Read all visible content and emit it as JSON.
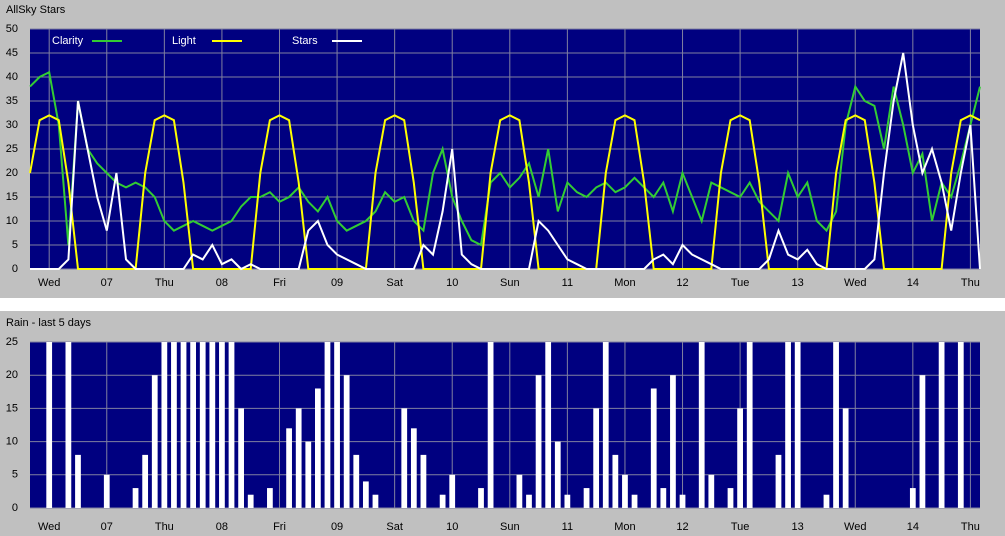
{
  "chart_data": [
    {
      "type": "line",
      "title": "AllSky Stars",
      "categories": [
        null,
        null,
        "Wed",
        null,
        null,
        null,
        null,
        null,
        "07",
        null,
        null,
        null,
        null,
        null,
        "Thu",
        null,
        null,
        null,
        null,
        null,
        "08",
        null,
        null,
        null,
        null,
        null,
        "Fri",
        null,
        null,
        null,
        null,
        null,
        "09",
        null,
        null,
        null,
        null,
        null,
        "Sat",
        null,
        null,
        null,
        null,
        null,
        "10",
        null,
        null,
        null,
        null,
        null,
        "Sun",
        null,
        null,
        null,
        null,
        null,
        "11",
        null,
        null,
        null,
        null,
        null,
        "Mon",
        null,
        null,
        null,
        null,
        null,
        "12",
        null,
        null,
        null,
        null,
        null,
        "Tue",
        null,
        null,
        null,
        null,
        null,
        "13",
        null,
        null,
        null,
        null,
        null,
        "Wed",
        null,
        null,
        null,
        null,
        null,
        "14",
        null,
        null,
        null,
        null,
        null,
        "Thu",
        null
      ],
      "series": [
        {
          "name": "Clarity",
          "color": "#33cc33",
          "values": [
            38,
            40,
            41,
            30,
            5,
            35,
            25,
            22,
            20,
            18,
            17,
            18,
            17,
            15,
            10,
            8,
            9,
            10,
            9,
            8,
            9,
            10,
            13,
            15,
            15,
            16,
            14,
            15,
            17,
            14,
            12,
            15,
            10,
            8,
            9,
            10,
            12,
            16,
            14,
            15,
            10,
            8,
            20,
            25,
            15,
            10,
            6,
            5,
            18,
            20,
            17,
            19,
            22,
            15,
            25,
            12,
            18,
            16,
            15,
            17,
            18,
            16,
            17,
            19,
            17,
            15,
            18,
            12,
            20,
            15,
            10,
            18,
            17,
            16,
            15,
            18,
            14,
            12,
            10,
            20,
            15,
            18,
            10,
            8,
            12,
            30,
            38,
            35,
            34,
            25,
            38,
            30,
            20,
            24,
            10,
            18,
            15,
            22,
            30,
            38
          ]
        },
        {
          "name": "Light",
          "color": "#ffff00",
          "values": [
            20,
            31,
            32,
            31,
            18,
            0,
            0,
            0,
            0,
            0,
            0,
            0,
            20,
            31,
            32,
            31,
            18,
            0,
            0,
            0,
            0,
            0,
            0,
            0,
            20,
            31,
            32,
            31,
            18,
            0,
            0,
            0,
            0,
            0,
            0,
            0,
            20,
            31,
            32,
            31,
            18,
            0,
            0,
            0,
            0,
            0,
            0,
            0,
            20,
            31,
            32,
            31,
            18,
            0,
            0,
            0,
            0,
            0,
            0,
            0,
            20,
            31,
            32,
            31,
            18,
            0,
            0,
            0,
            0,
            0,
            0,
            0,
            20,
            31,
            32,
            31,
            18,
            0,
            0,
            0,
            0,
            0,
            0,
            0,
            20,
            31,
            32,
            31,
            18,
            0,
            0,
            0,
            0,
            0,
            0,
            0,
            20,
            31,
            32,
            31
          ]
        },
        {
          "name": "Stars",
          "color": "#ffffff",
          "values": [
            0,
            0,
            0,
            0,
            2,
            35,
            25,
            15,
            8,
            20,
            2,
            0,
            0,
            0,
            0,
            0,
            0,
            3,
            2,
            5,
            1,
            2,
            0,
            1,
            0,
            0,
            0,
            0,
            0,
            8,
            10,
            5,
            3,
            2,
            1,
            0,
            0,
            0,
            0,
            0,
            0,
            5,
            3,
            12,
            25,
            3,
            1,
            0,
            0,
            0,
            0,
            0,
            0,
            10,
            8,
            5,
            2,
            1,
            0,
            0,
            0,
            0,
            0,
            0,
            0,
            2,
            3,
            1,
            5,
            3,
            2,
            1,
            0,
            0,
            0,
            0,
            0,
            2,
            8,
            3,
            2,
            4,
            1,
            0,
            0,
            0,
            0,
            0,
            2,
            20,
            35,
            45,
            30,
            20,
            25,
            18,
            8,
            20,
            30,
            0
          ]
        }
      ],
      "ylim": [
        0,
        50
      ],
      "yticks": [
        0,
        5,
        10,
        15,
        20,
        25,
        30,
        35,
        40,
        45,
        50
      ],
      "grid": true
    },
    {
      "type": "bar",
      "title": "Rain - last 5 days",
      "categories": [
        null,
        null,
        "Wed",
        null,
        null,
        null,
        null,
        null,
        "07",
        null,
        null,
        null,
        null,
        null,
        "Thu",
        null,
        null,
        null,
        null,
        null,
        "08",
        null,
        null,
        null,
        null,
        null,
        "Fri",
        null,
        null,
        null,
        null,
        null,
        "09",
        null,
        null,
        null,
        null,
        null,
        "Sat",
        null,
        null,
        null,
        null,
        null,
        "10",
        null,
        null,
        null,
        null,
        null,
        "Sun",
        null,
        null,
        null,
        null,
        null,
        "11",
        null,
        null,
        null,
        null,
        null,
        "Mon",
        null,
        null,
        null,
        null,
        null,
        "12",
        null,
        null,
        null,
        null,
        null,
        "Tue",
        null,
        null,
        null,
        null,
        null,
        "13",
        null,
        null,
        null,
        null,
        null,
        "Wed",
        null,
        null,
        null,
        null,
        null,
        "14",
        null,
        null,
        null,
        null,
        null,
        "Thu",
        null
      ],
      "values": [
        0,
        0,
        25,
        0,
        25,
        8,
        0,
        0,
        5,
        0,
        0,
        3,
        8,
        20,
        25,
        25,
        25,
        25,
        25,
        25,
        25,
        25,
        15,
        2,
        0,
        3,
        0,
        12,
        15,
        10,
        18,
        25,
        25,
        20,
        8,
        4,
        2,
        0,
        0,
        15,
        12,
        8,
        0,
        2,
        5,
        0,
        0,
        3,
        25,
        0,
        0,
        5,
        2,
        20,
        25,
        10,
        2,
        0,
        3,
        15,
        25,
        8,
        5,
        2,
        0,
        18,
        3,
        20,
        2,
        0,
        25,
        5,
        0,
        3,
        15,
        25,
        0,
        0,
        8,
        25,
        25,
        0,
        0,
        2,
        25,
        15,
        0,
        0,
        0,
        0,
        0,
        0,
        3,
        20,
        0,
        25,
        0,
        25,
        0,
        0
      ],
      "color": "#ffffff",
      "ylim": [
        0,
        25
      ],
      "yticks": [
        0,
        5,
        10,
        15,
        20,
        25
      ],
      "grid": true
    }
  ]
}
